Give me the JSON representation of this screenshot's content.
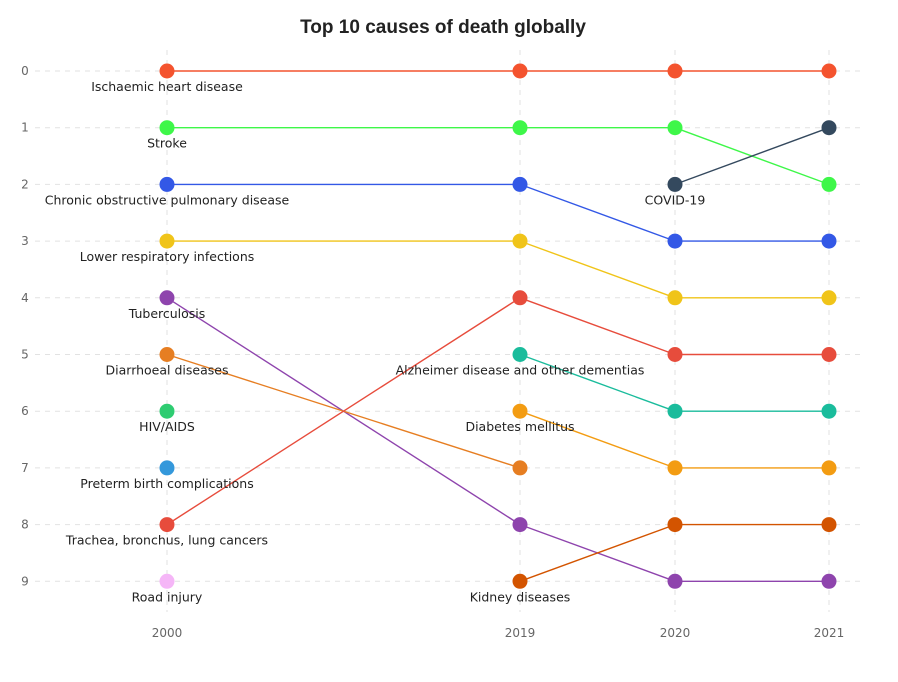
{
  "chart_data": {
    "type": "line",
    "subtype": "bump",
    "title": "Top 10 causes of death globally",
    "xlabel": "",
    "ylabel": "",
    "x": [
      "2000",
      "2019",
      "2020",
      "2021"
    ],
    "y_ticks": [
      "0",
      "1",
      "2",
      "3",
      "4",
      "5",
      "6",
      "7",
      "8",
      "9"
    ],
    "ylim": [
      0,
      9
    ],
    "y_inverted": true,
    "grid": true,
    "legend": "none",
    "series": [
      {
        "name": "Ischaemic heart disease",
        "color": "#f4532e",
        "ranks": [
          0,
          0,
          0,
          0
        ],
        "label_at": 0
      },
      {
        "name": "Stroke",
        "color": "#3ef749",
        "ranks": [
          1,
          1,
          1,
          2
        ],
        "label_at": 0
      },
      {
        "name": "Chronic obstructive pulmonary disease",
        "color": "#3358e6",
        "ranks": [
          2,
          2,
          3,
          3
        ],
        "label_at": 0
      },
      {
        "name": "Lower respiratory infections",
        "color": "#f0c419",
        "ranks": [
          3,
          3,
          4,
          4
        ],
        "label_at": 0
      },
      {
        "name": "Tuberculosis",
        "color": "#8e44ad",
        "ranks": [
          4,
          8,
          9,
          9
        ],
        "label_at": 0
      },
      {
        "name": "Diarrhoeal diseases",
        "color": "#e67e22",
        "ranks": [
          5,
          7,
          null,
          null
        ],
        "label_at": 0
      },
      {
        "name": "HIV/AIDS",
        "color": "#2ecc71",
        "ranks": [
          6,
          null,
          null,
          null
        ],
        "label_at": 0
      },
      {
        "name": "Preterm birth complications",
        "color": "#3498db",
        "ranks": [
          7,
          null,
          null,
          null
        ],
        "label_at": 0
      },
      {
        "name": "Trachea, bronchus, lung cancers",
        "color": "#e74c3c",
        "ranks": [
          8,
          4,
          5,
          5
        ],
        "label_at": 0
      },
      {
        "name": "Road injury",
        "color": "#f5b6f7",
        "ranks": [
          9,
          null,
          null,
          null
        ],
        "label_at": 0
      },
      {
        "name": "Alzheimer disease and other dementias",
        "color": "#1abc9c",
        "ranks": [
          null,
          5,
          6,
          6
        ],
        "label_at": 1
      },
      {
        "name": "Diabetes mellitus",
        "color": "#f39c12",
        "ranks": [
          null,
          6,
          7,
          7
        ],
        "label_at": 1
      },
      {
        "name": "Kidney diseases",
        "color": "#d35400",
        "ranks": [
          null,
          9,
          8,
          8
        ],
        "label_at": 1
      },
      {
        "name": "COVID-19",
        "color": "#34495e",
        "ranks": [
          null,
          null,
          2,
          1
        ],
        "label_at": 2
      }
    ]
  }
}
